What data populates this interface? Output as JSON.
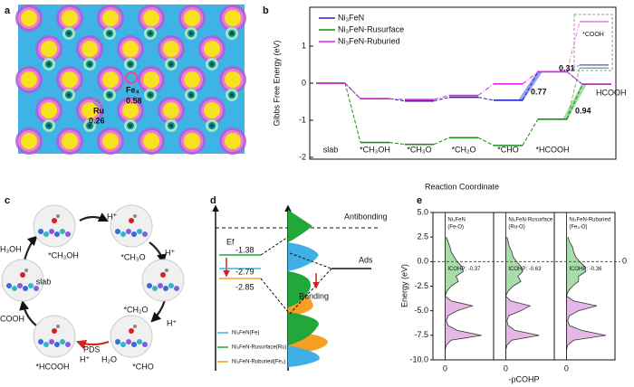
{
  "panels": {
    "a": {
      "letter": "a",
      "fe": "Fe₄",
      "fe_value": "0.58",
      "ru": "Ru",
      "ru_value": "0.26"
    },
    "c": {
      "letter": "c",
      "states": [
        "*CH₃OH",
        "*CH₃O",
        "*CH₂O",
        "*CHO",
        "*HCOOH",
        "slab"
      ],
      "protons": [
        "H⁺",
        "H⁺",
        "H⁺",
        "H⁺"
      ],
      "water": "H₂O",
      "pds": "PDS",
      "edge": [
        "H₃OH",
        "COOH"
      ]
    },
    "d": {
      "letter": "d",
      "fermi": "Ef",
      "antibonding": "Antibonding",
      "bonding": "Bonding",
      "ads": "Ads",
      "items": [
        {
          "name": "Ni₃FeN(Fe)",
          "color": "#3fb0e6",
          "center": -2.79
        },
        {
          "name": "Ni₃FeN-Rusurface(Ru)",
          "color": "#22a83a",
          "center": -1.38
        },
        {
          "name": "Ni₃FeN-Ruburied(Fe₄)",
          "color": "#f5a024",
          "center": -2.85
        }
      ]
    }
  },
  "chart_data": [
    {
      "type": "step",
      "letter": "b",
      "ylabel": "Gibbs Free Energy (eV)",
      "xlabel": "Reaction Coordinate",
      "categories": [
        "slab",
        "*CH₃OH",
        "*CH₃O",
        "*CH₂O",
        "*CHO",
        "*HCOOH",
        null
      ],
      "ylim": [
        -2,
        2
      ],
      "yticks": [
        -2,
        -1,
        0,
        1
      ],
      "inset_label": "*COOH",
      "annotations": [
        "0.31",
        "0.77",
        "0.94",
        "HCOOH"
      ],
      "series": [
        {
          "name": "Ni₃FeN",
          "color": "#2424c8",
          "values": [
            0,
            -0.42,
            -0.48,
            -0.38,
            -0.46,
            0.31,
            -0.03
          ],
          "cooh": 0.49
        },
        {
          "name": "Ni₃FeN-Rusurface",
          "color": "#1a8c1a",
          "values": [
            0,
            -1.6,
            -1.65,
            -1.47,
            -1.68,
            -0.97,
            -0.03
          ],
          "cooh": 0.41
        },
        {
          "name": "Ni₃FeN-Ruburied",
          "color": "#e020e0",
          "values": [
            0,
            -0.42,
            -0.44,
            -0.33,
            -0.02,
            0.31,
            -0.03
          ],
          "cooh": 1.66
        }
      ]
    },
    {
      "type": "pcohp",
      "letter": "e",
      "ylabel": "Energy (eV)",
      "xlabel": "-pCOHP",
      "ylim": [
        -10,
        5
      ],
      "yticks": [
        {
          "value": 5,
          "label": "5.0"
        },
        {
          "value": 2.5,
          "label": "2.5"
        },
        {
          "value": 0,
          "label": "0.0"
        },
        {
          "value": -2.5,
          "label": "-2.5"
        },
        {
          "value": -5,
          "label": "-5.0"
        },
        {
          "value": -7.5,
          "label": "-7.5"
        },
        {
          "value": -10,
          "label": "-10.0"
        }
      ],
      "xlim": [
        -0.2,
        0.8
      ],
      "xticks": [
        0
      ],
      "fermi": 0,
      "panels": [
        {
          "name": "Ni₃FeN",
          "bond": "(Fe-O)",
          "icohp": "ICOHP: -0.37",
          "series": [
            {
              "color": "#a8dca8",
              "energy": [
                2.5,
                2,
                1.5,
                1,
                0.5,
                0,
                -0.5,
                -1,
                -1.5,
                -2,
                -2.5,
                -3,
                -3.5
              ],
              "values": [
                0.02,
                0.05,
                0.08,
                0.1,
                0.15,
                0.2,
                0.28,
                0.3,
                0.18,
                0.22,
                0.1,
                0.03,
                0
              ]
            },
            {
              "color": "#e3b8e6",
              "energy": [
                -3.5,
                -4,
                -4.5,
                -5,
                -5.5,
                -6,
                -6.5,
                -7,
                -7.5,
                -8,
                -8.5,
                -9,
                -9.5,
                -10
              ],
              "values": [
                0,
                0.1,
                0.45,
                0.2,
                0.05,
                0.02,
                0.05,
                0.2,
                0.6,
                0.1,
                0.02,
                0,
                0,
                0
              ]
            }
          ]
        },
        {
          "name": "Ni₃FeN-Rusurface",
          "bond": "(Ru-O)",
          "icohp": "ICOHP: -0.63",
          "series": [
            {
              "color": "#a8dca8",
              "energy": [
                2.5,
                2,
                1.5,
                1,
                0.5,
                0,
                -0.5,
                -1,
                -1.5,
                -2,
                -2.5,
                -3,
                -3.5
              ],
              "values": [
                0.02,
                0.04,
                0.06,
                0.1,
                0.12,
                0.18,
                0.25,
                0.28,
                0.2,
                0.25,
                0.12,
                0.04,
                0
              ]
            },
            {
              "color": "#e3b8e6",
              "energy": [
                -3.5,
                -4,
                -4.5,
                -5,
                -5.5,
                -6,
                -6.5,
                -7,
                -7.5,
                -8,
                -8.5,
                -9,
                -9.5,
                -10
              ],
              "values": [
                0,
                0.08,
                0.4,
                0.25,
                0.05,
                0.02,
                0.04,
                0.15,
                0.55,
                0.1,
                0.02,
                0,
                0,
                0
              ]
            }
          ]
        },
        {
          "name": "Ni₃FeN-Ruburied",
          "bond": "(Fe₄-O)",
          "icohp": "ICOHP: -0.36",
          "series": [
            {
              "color": "#a8dca8",
              "energy": [
                2.5,
                2,
                1.5,
                1,
                0.5,
                0,
                -0.5,
                -1,
                -1.5,
                -2,
                -2.5,
                -3,
                -3.5
              ],
              "values": [
                0.03,
                0.05,
                0.1,
                0.12,
                0.15,
                0.22,
                0.3,
                0.32,
                0.2,
                0.2,
                0.1,
                0.03,
                0
              ]
            },
            {
              "color": "#e3b8e6",
              "energy": [
                -3.5,
                -4,
                -4.5,
                -5,
                -5.5,
                -6,
                -6.5,
                -7,
                -7.5,
                -8,
                -8.5,
                -9,
                -9.5,
                -10
              ],
              "values": [
                0,
                0.12,
                0.5,
                0.2,
                0.05,
                0.02,
                0.05,
                0.25,
                0.65,
                0.12,
                0.02,
                0,
                0,
                0
              ]
            }
          ]
        }
      ]
    }
  ]
}
